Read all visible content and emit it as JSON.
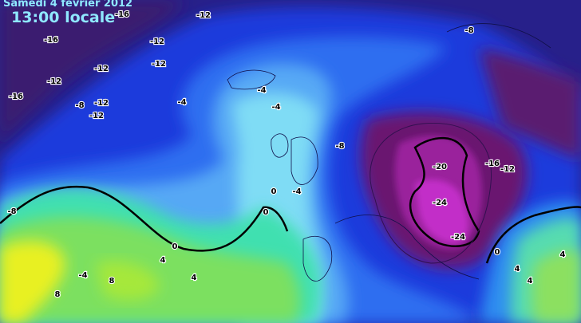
{
  "header": {
    "date": "Samedi 4 fevrier 2012",
    "time": "13:00 locale"
  },
  "labels": [
    -16,
    -12,
    -16,
    -12,
    -8,
    -12,
    -12,
    -12,
    -16,
    -8,
    -12,
    -12,
    -4,
    -4,
    -4,
    -8,
    -20,
    -16,
    -12,
    -24,
    -24,
    0,
    -4,
    0,
    -8,
    0,
    0,
    4,
    -4,
    8,
    4,
    8,
    4,
    4,
    4
  ]
}
